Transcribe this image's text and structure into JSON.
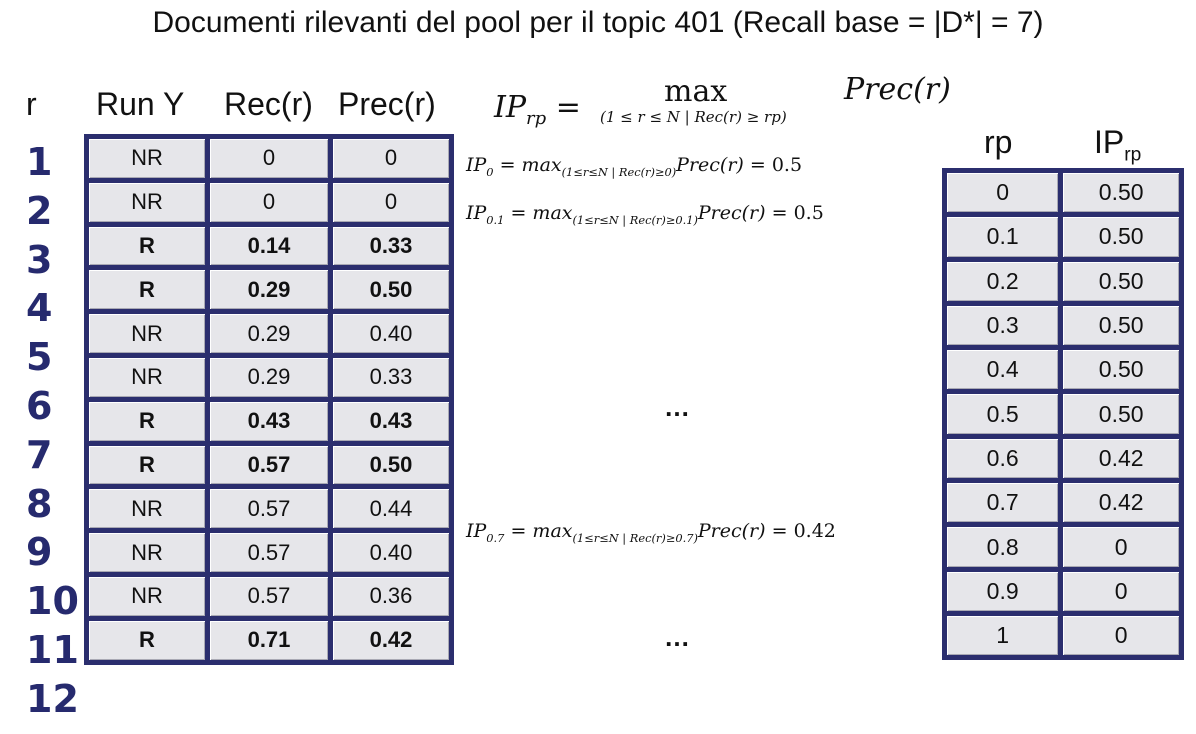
{
  "title": "Documenti rilevanti del pool per il topic 401 (Recall base = |D*| = 7)",
  "left_headers": {
    "r": "r",
    "run": "Run Y",
    "rec": "Rec(r)",
    "prec": "Prec(r)"
  },
  "ranks": [
    "1",
    "2",
    "3",
    "4",
    "5",
    "6",
    "7",
    "8",
    "9",
    "10",
    "11",
    "12"
  ],
  "run_rows": [
    {
      "judgment": "NR",
      "rec": "0",
      "prec": "0",
      "relevant": false
    },
    {
      "judgment": "NR",
      "rec": "0",
      "prec": "0",
      "relevant": false
    },
    {
      "judgment": "R",
      "rec": "0.14",
      "prec": "0.33",
      "relevant": true
    },
    {
      "judgment": "R",
      "rec": "0.29",
      "prec": "0.50",
      "relevant": true
    },
    {
      "judgment": "NR",
      "rec": "0.29",
      "prec": "0.40",
      "relevant": false
    },
    {
      "judgment": "NR",
      "rec": "0.29",
      "prec": "0.33",
      "relevant": false
    },
    {
      "judgment": "R",
      "rec": "0.43",
      "prec": "0.43",
      "relevant": true
    },
    {
      "judgment": "R",
      "rec": "0.57",
      "prec": "0.50",
      "relevant": true
    },
    {
      "judgment": "NR",
      "rec": "0.57",
      "prec": "0.44",
      "relevant": false
    },
    {
      "judgment": "NR",
      "rec": "0.57",
      "prec": "0.40",
      "relevant": false
    },
    {
      "judgment": "NR",
      "rec": "0.57",
      "prec": "0.36",
      "relevant": false
    },
    {
      "judgment": "R",
      "rec": "0.71",
      "prec": "0.42",
      "relevant": true
    }
  ],
  "formula": {
    "lhs": "IP",
    "lhs_sub": "rp",
    "equals": "=",
    "max": "max",
    "limit": "(1 ≤ r ≤ N | Rec(r) ≥ rp)",
    "rhs": "Prec(r)"
  },
  "equations": {
    "ip0": {
      "sub": "0",
      "condition": "(1≤r≤N | Rec(r)≥0)",
      "result": "0.5"
    },
    "ip01": {
      "sub": "0.1",
      "condition": "(1≤r≤N | Rec(r)≥0.1)",
      "result": "0.5"
    },
    "ip07": {
      "sub": "0.7",
      "condition": "(1≤r≤N | Rec(r)≥0.7)",
      "result": "0.42"
    }
  },
  "ellipsis": "…",
  "ip_table": {
    "header_rp": "rp",
    "header_ip": "IP",
    "header_ip_sub": "rp",
    "rows": [
      {
        "rp": "0",
        "ip": "0.50"
      },
      {
        "rp": "0.1",
        "ip": "0.50"
      },
      {
        "rp": "0.2",
        "ip": "0.50"
      },
      {
        "rp": "0.3",
        "ip": "0.50"
      },
      {
        "rp": "0.4",
        "ip": "0.50"
      },
      {
        "rp": "0.5",
        "ip": "0.50"
      },
      {
        "rp": "0.6",
        "ip": "0.42"
      },
      {
        "rp": "0.7",
        "ip": "0.42"
      },
      {
        "rp": "0.8",
        "ip": "0"
      },
      {
        "rp": "0.9",
        "ip": "0"
      },
      {
        "rp": "1",
        "ip": "0"
      }
    ]
  },
  "colors": {
    "border": "#2b2e6e",
    "cell": "#e6e6ea",
    "rank_digits": "#262a6e"
  }
}
